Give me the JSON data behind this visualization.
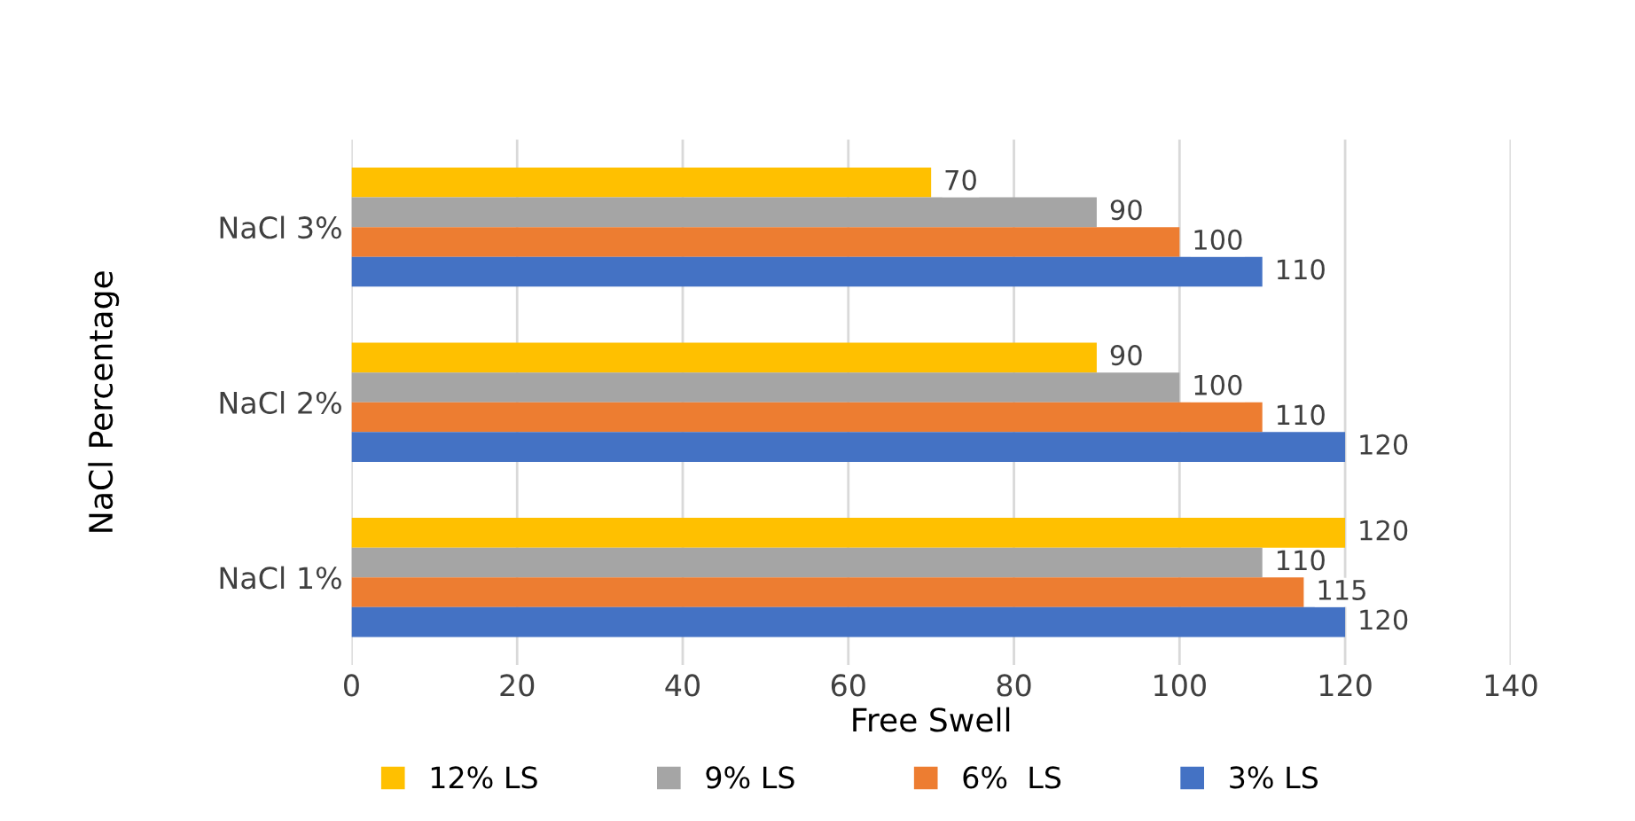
{
  "chart_data": {
    "type": "bar",
    "orientation": "horizontal",
    "xlabel": "Free Swell",
    "ylabel": "NaCl Percentage",
    "categories": [
      "NaCl 3%",
      "NaCl 2%",
      "NaCl 1%"
    ],
    "series": [
      {
        "name": "12% LS",
        "color": "#ffc000",
        "values": [
          70,
          90,
          120
        ]
      },
      {
        "name": "9% LS",
        "color": "#a5a5a5",
        "values": [
          90,
          100,
          110
        ]
      },
      {
        "name": "6%  LS",
        "color": "#ed7d31",
        "values": [
          100,
          110,
          115
        ]
      },
      {
        "name": "3% LS",
        "color": "#4472c4",
        "values": [
          110,
          120,
          120
        ]
      }
    ],
    "xlim": [
      0,
      140
    ],
    "xticks": [
      0,
      20,
      40,
      60,
      80,
      100,
      120,
      140
    ],
    "grid": "x",
    "legend": "bottom",
    "data_labels": true
  }
}
